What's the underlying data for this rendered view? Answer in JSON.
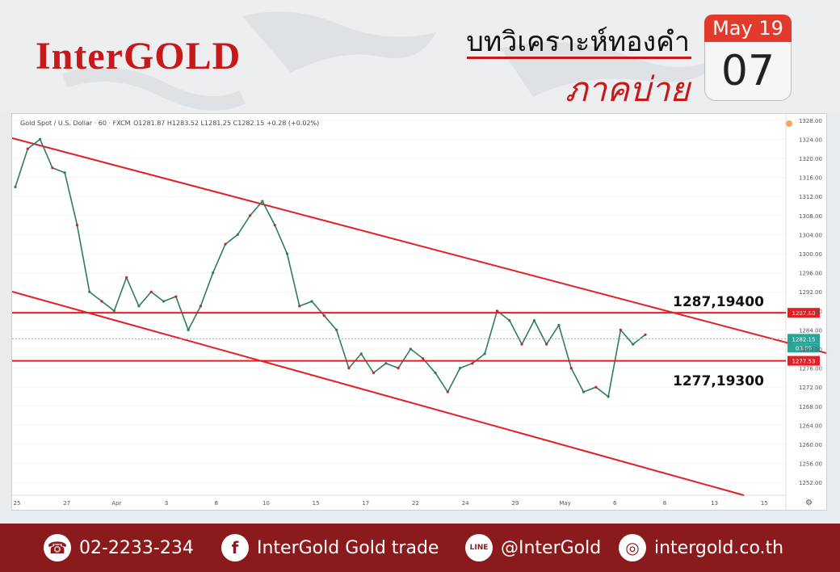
{
  "header": {
    "brand": "InterGOLD",
    "title_top": "บทวิเคราะห์ทองคำ",
    "title_bottom": "ภาคบ่าย",
    "calendar_month": "May 19",
    "calendar_day": "07"
  },
  "chart_info": {
    "symbol": "Gold Spot / U.S. Dollar · 60 · FXCM",
    "ohlc": "O1281.87 H1283.52 L1281.25 C1282.15 +0.28 (+0.02%)"
  },
  "annotations": {
    "resistance": "1287,19400",
    "support": "1277,19300"
  },
  "chart_data": {
    "type": "line",
    "title": "",
    "x_tick_labels": [
      "25",
      "27",
      "Apr",
      "3",
      "8",
      "10",
      "15",
      "17",
      "22",
      "24",
      "29",
      "May",
      "6",
      "8",
      "13",
      "15"
    ],
    "y_tick_labels": [
      "1328.00",
      "1324.00",
      "1320.00",
      "1316.00",
      "1312.00",
      "1308.00",
      "1304.00",
      "1300.00",
      "1296.00",
      "1292.00",
      "1288.00",
      "1284.00",
      "1280.00",
      "1276.00",
      "1272.00",
      "1268.00",
      "1264.00",
      "1260.00",
      "1256.00",
      "1252.00"
    ],
    "ylim": [
      1250,
      1330
    ],
    "price_labels": {
      "upper": "1287.60",
      "current": "1282.15",
      "countdown": "03:09",
      "lower": "1277.53"
    },
    "horizontal_levels": [
      1287.6,
      1277.53
    ],
    "current_price": 1282.15,
    "series": [
      {
        "x": [
          "Mar 25",
          "Mar 26",
          "Mar 26",
          "Mar 27",
          "Mar 27",
          "Mar 28",
          "Mar 28",
          "Mar 29",
          "Apr 1",
          "Apr 1",
          "Apr 2",
          "Apr 3",
          "Apr 3",
          "Apr 4",
          "Apr 5",
          "Apr 5",
          "Apr 8",
          "Apr 8",
          "Apr 9",
          "Apr 10",
          "Apr 10",
          "Apr 11",
          "Apr 11",
          "Apr 12",
          "Apr 15",
          "Apr 16",
          "Apr 16",
          "Apr 17",
          "Apr 17",
          "Apr 18",
          "Apr 19",
          "Apr 22",
          "Apr 23",
          "Apr 23",
          "Apr 24",
          "Apr 24",
          "Apr 25",
          "Apr 26",
          "Apr 26",
          "Apr 29",
          "Apr 29",
          "Apr 30",
          "Apr 30",
          "May 1",
          "May 1",
          "May 2",
          "May 2",
          "May 3",
          "May 3",
          "May 6",
          "May 6",
          "May 7"
        ],
        "values": [
          1314,
          1322,
          1324,
          1318,
          1317,
          1306,
          1292,
          1290,
          1288,
          1295,
          1289,
          1292,
          1290,
          1291,
          1284,
          1289,
          1296,
          1302,
          1304,
          1308,
          1311,
          1306,
          1300,
          1289,
          1290,
          1287,
          1284,
          1276,
          1279,
          1275,
          1277,
          1276,
          1280,
          1278,
          1275,
          1271,
          1276,
          1277,
          1279,
          1288,
          1286,
          1281,
          1286,
          1281,
          1285,
          1276,
          1271,
          1272,
          1270,
          1284,
          1281,
          1283
        ]
      }
    ]
  },
  "footer": {
    "phone": "02-2233-234",
    "facebook": "InterGold Gold trade",
    "line": "@InterGold",
    "website": "intergold.co.th",
    "phone_icon": "☎",
    "facebook_icon": "f",
    "line_icon": "LINE",
    "web_icon": "◎"
  }
}
